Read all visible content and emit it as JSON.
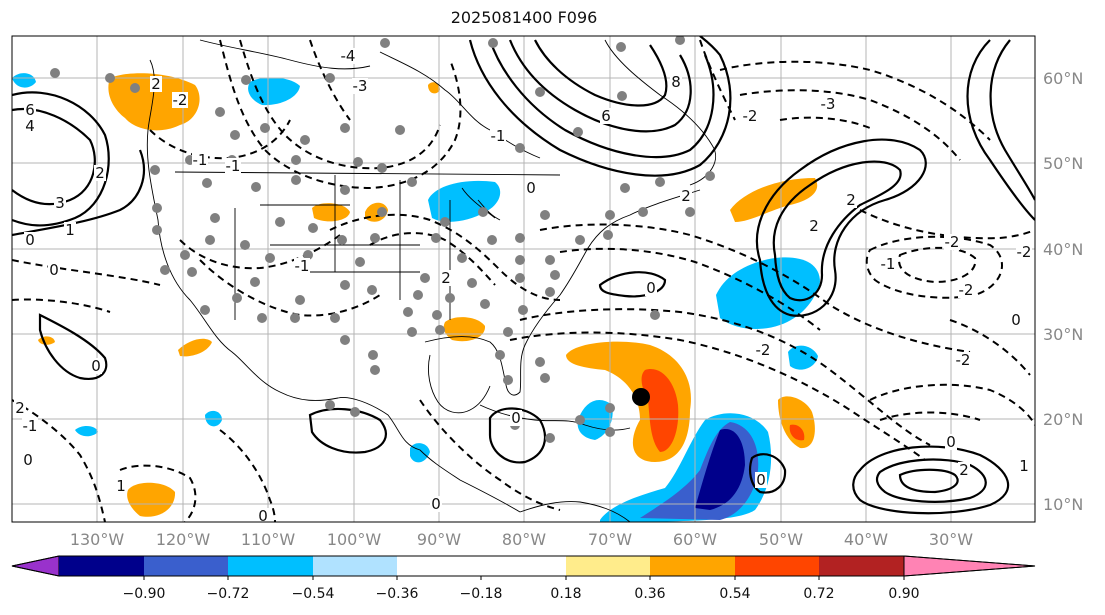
{
  "title": "2025081400 F096",
  "lon_labels": [
    "130°W",
    "120°W",
    "110°W",
    "100°W",
    "90°W",
    "80°W",
    "70°W",
    "60°W",
    "50°W",
    "40°W",
    "30°W"
  ],
  "lat_labels": [
    "60°N",
    "50°N",
    "40°N",
    "30°N",
    "20°N",
    "10°N"
  ],
  "colorbar": {
    "ticks": [
      "−0.90",
      "−0.72",
      "−0.54",
      "−0.36",
      "−0.18",
      "0.18",
      "0.36",
      "0.54",
      "0.72",
      "0.90"
    ],
    "colors": [
      "#9932cc",
      "#00008b",
      "#3a5fcd",
      "#00bfff",
      "#b0e2ff",
      "#ffffff",
      "#ffec8b",
      "#ffa500",
      "#ff4500",
      "#b22222",
      "#ff83b4"
    ]
  },
  "contour_labels": [
    "6",
    "4",
    "3",
    "2",
    "2",
    "1",
    "0",
    "0",
    "-1",
    "-2",
    "-3",
    "-4",
    "6",
    "8",
    "2",
    "-2",
    "-3",
    "2",
    "2",
    "-2",
    "-2",
    "-1",
    "0",
    "0",
    "0",
    "-1",
    "-2",
    "0",
    "2",
    "-1",
    "0",
    "1",
    "-2",
    "0",
    "1",
    "2",
    "0",
    "0",
    "-1",
    "2",
    "-1",
    "0",
    "0",
    "-2"
  ],
  "storm_marker": "tropical-cyclone-center"
}
